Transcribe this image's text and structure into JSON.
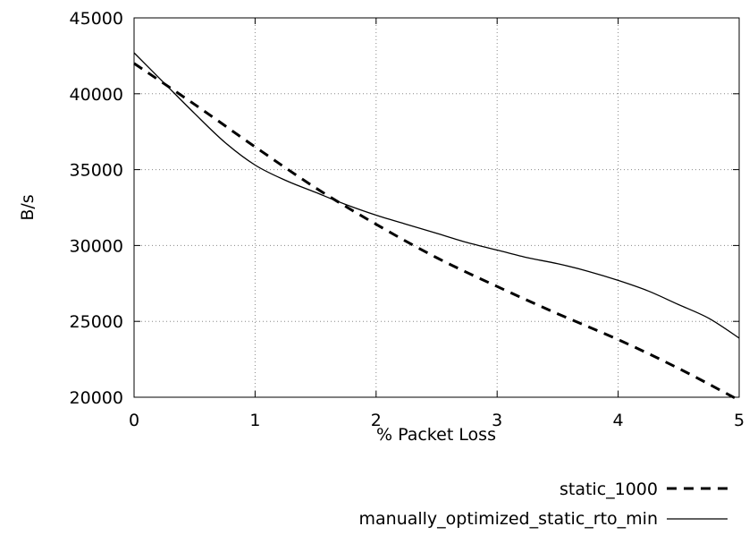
{
  "chart_data": {
    "type": "line",
    "title": "",
    "xlabel": "% Packet Loss",
    "ylabel": "B/s",
    "xlim": [
      0,
      5
    ],
    "ylim": [
      20000,
      45000
    ],
    "xticks": [
      0,
      1,
      2,
      3,
      4,
      5
    ],
    "yticks": [
      20000,
      25000,
      30000,
      35000,
      40000,
      45000
    ],
    "xtick_labels": [
      "0",
      "1",
      "2",
      "3",
      "4",
      "5"
    ],
    "ytick_labels": [
      "20000",
      "25000",
      "30000",
      "35000",
      "40000",
      "45000"
    ],
    "grid": true,
    "legend_position": "bottom-right, below plot",
    "series": [
      {
        "name": "static_1000",
        "style": "dashed",
        "color": "#000000",
        "x": [
          0,
          0.5,
          1,
          1.5,
          2,
          2.5,
          3,
          3.5,
          4,
          4.5,
          5
        ],
        "y": [
          42000,
          39300,
          36500,
          33800,
          31400,
          29200,
          27300,
          25500,
          23800,
          21900,
          19800
        ]
      },
      {
        "name": "manually_optimized_static_rto_min",
        "style": "solid",
        "color": "#000000",
        "x": [
          0,
          0.25,
          0.5,
          0.75,
          1,
          1.25,
          1.5,
          1.75,
          2,
          2.25,
          2.5,
          2.75,
          3,
          3.25,
          3.5,
          3.75,
          4,
          4.25,
          4.5,
          4.75,
          5
        ],
        "y": [
          42700,
          40700,
          38700,
          36800,
          35300,
          34300,
          33500,
          32700,
          32000,
          31400,
          30800,
          30200,
          29700,
          29200,
          28800,
          28300,
          27700,
          27000,
          26100,
          25200,
          23900
        ]
      }
    ]
  }
}
